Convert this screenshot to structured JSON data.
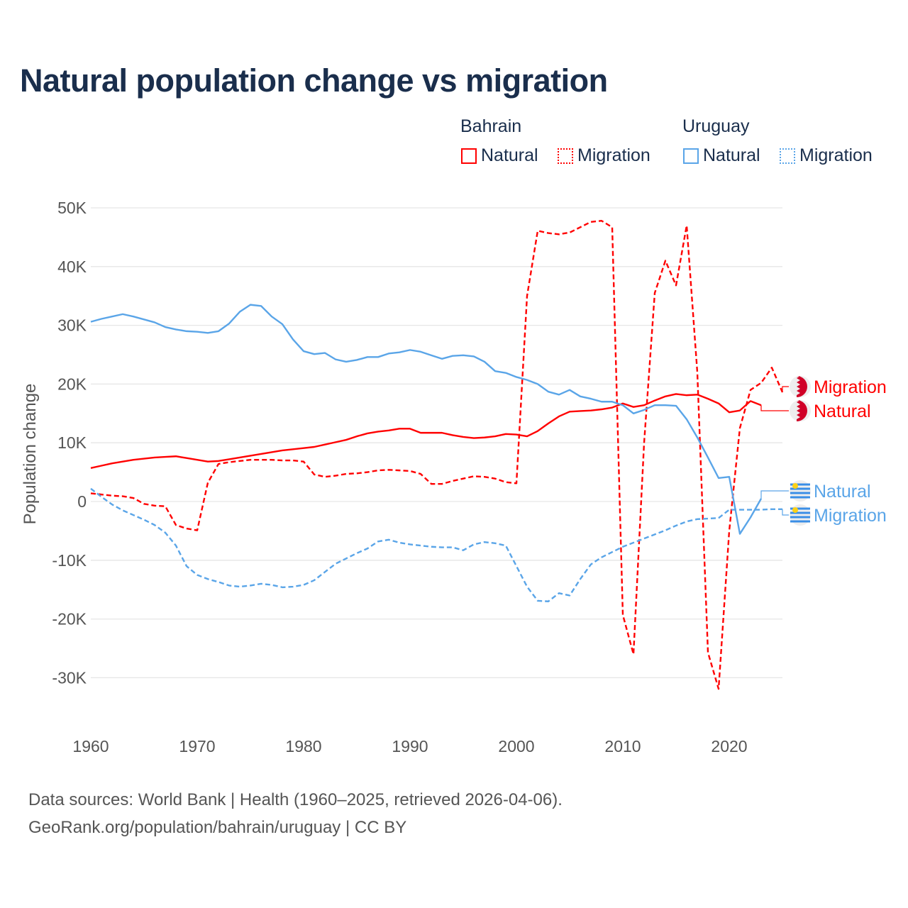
{
  "title": "Natural population change vs migration",
  "legend": {
    "groups": [
      {
        "country": "Bahrain",
        "color": "#ff0000",
        "items": [
          "Natural",
          "Migration"
        ]
      },
      {
        "country": "Uruguay",
        "color": "#5aa5e8",
        "items": [
          "Natural",
          "Migration"
        ]
      }
    ]
  },
  "source": {
    "line1": "Data sources: World Bank | Health (1960–2025, retrieved 2026-04-06).",
    "line2": "GeoRank.org/population/bahrain/uruguay | CC BY"
  },
  "chart_data": {
    "type": "line",
    "title": "Natural population change vs migration",
    "xlabel": "",
    "ylabel": "Population change",
    "xlim": [
      1960,
      2025
    ],
    "ylim": [
      -35000,
      52000
    ],
    "x_ticks": [
      1960,
      1970,
      1980,
      1990,
      2000,
      2010,
      2020
    ],
    "x_tick_labels": [
      "1960",
      "1970",
      "1980",
      "1990",
      "2000",
      "2010",
      "2020"
    ],
    "y_ticks": [
      -30000,
      -20000,
      -10000,
      0,
      10000,
      20000,
      30000,
      40000,
      50000
    ],
    "y_tick_labels": [
      "-30K",
      "-20K",
      "-10K",
      "0",
      "10K",
      "20K",
      "30K",
      "40K",
      "50K"
    ],
    "grid": true,
    "legend_position": "top-right",
    "start_year": 1960,
    "series": [
      {
        "name": "Bahrain Natural",
        "label": "Natural",
        "country": "Bahrain",
        "color": "#ff0000",
        "dash": false,
        "values": [
          5.7,
          6.1,
          6.5,
          6.8,
          7.1,
          7.3,
          7.5,
          7.6,
          7.7,
          7.4,
          7.1,
          6.8,
          6.9,
          7.2,
          7.5,
          7.8,
          8.1,
          8.4,
          8.7,
          8.9,
          9.1,
          9.3,
          9.7,
          10.1,
          10.5,
          11.1,
          11.6,
          11.9,
          12.1,
          12.4,
          12.4,
          11.7,
          11.7,
          11.7,
          11.3,
          11.0,
          10.8,
          10.9,
          11.1,
          11.5,
          11.4,
          11.1,
          12.0,
          13.3,
          14.5,
          15.3,
          15.4,
          15.5,
          15.7,
          16.0,
          16.7,
          16.1,
          16.4,
          17.2,
          17.9,
          18.3,
          18.1,
          18.2,
          17.5,
          16.7,
          15.2,
          15.5,
          17.1,
          16.4
        ]
      },
      {
        "name": "Bahrain Migration",
        "label": "Migration",
        "country": "Bahrain",
        "color": "#ff0000",
        "dash": true,
        "values": [
          1.4,
          1.2,
          1.0,
          0.9,
          0.6,
          -0.4,
          -0.7,
          -0.8,
          -4.0,
          -4.6,
          -4.9,
          3.2,
          6.4,
          6.7,
          6.9,
          7.1,
          7.1,
          7.1,
          7.0,
          7.0,
          6.8,
          4.6,
          4.2,
          4.4,
          4.7,
          4.8,
          5.0,
          5.3,
          5.4,
          5.3,
          5.2,
          4.7,
          3.0,
          3.0,
          3.5,
          3.9,
          4.3,
          4.2,
          3.9,
          3.3,
          3.1,
          35.0,
          46.1,
          45.7,
          45.5,
          45.8,
          46.7,
          47.6,
          47.8,
          46.7,
          -19.3,
          -26.0,
          10.0,
          35.5,
          41.0,
          36.8,
          47.0,
          22.0,
          -25.7,
          -31.9,
          -5.0,
          12.5,
          19.0,
          20.2,
          22.8,
          18.6
        ]
      },
      {
        "name": "Uruguay Natural",
        "label": "Natural",
        "country": "Uruguay",
        "color": "#5aa5e8",
        "dash": false,
        "values": [
          30.6,
          31.1,
          31.5,
          31.9,
          31.5,
          31.0,
          30.5,
          29.7,
          29.3,
          29.0,
          28.9,
          28.7,
          29.0,
          30.3,
          32.3,
          33.5,
          33.3,
          31.5,
          30.2,
          27.6,
          25.6,
          25.1,
          25.3,
          24.2,
          23.8,
          24.1,
          24.6,
          24.6,
          25.2,
          25.4,
          25.8,
          25.5,
          24.9,
          24.3,
          24.8,
          24.9,
          24.7,
          23.8,
          22.2,
          21.9,
          21.2,
          20.7,
          20.0,
          18.7,
          18.2,
          19.0,
          17.9,
          17.5,
          17.0,
          17.0,
          16.4,
          15.0,
          15.6,
          16.4,
          16.4,
          16.3,
          14.0,
          10.9,
          7.5,
          4.0,
          4.2,
          -5.5,
          -2.7,
          0.5
        ]
      },
      {
        "name": "Uruguay Migration",
        "label": "Migration",
        "country": "Uruguay",
        "color": "#5aa5e8",
        "dash": true,
        "values": [
          2.2,
          0.8,
          -0.5,
          -1.5,
          -2.3,
          -3.1,
          -4.0,
          -5.3,
          -7.5,
          -11.0,
          -12.5,
          -13.2,
          -13.7,
          -14.3,
          -14.5,
          -14.3,
          -14.0,
          -14.2,
          -14.6,
          -14.5,
          -14.2,
          -13.4,
          -12.0,
          -10.6,
          -9.7,
          -8.8,
          -8.0,
          -6.8,
          -6.5,
          -7.0,
          -7.3,
          -7.5,
          -7.7,
          -7.8,
          -7.8,
          -8.3,
          -7.3,
          -6.9,
          -7.1,
          -7.5,
          -11.0,
          -14.5,
          -16.9,
          -17.0,
          -15.6,
          -16.0,
          -13.2,
          -10.7,
          -9.5,
          -8.6,
          -7.7,
          -7.0,
          -6.3,
          -5.6,
          -4.9,
          -4.1,
          -3.4,
          -3.0,
          -2.9,
          -2.8,
          -1.4,
          -1.4,
          -1.4,
          -1.4,
          -1.3,
          -1.3
        ]
      }
    ],
    "value_unit": "thousands"
  }
}
